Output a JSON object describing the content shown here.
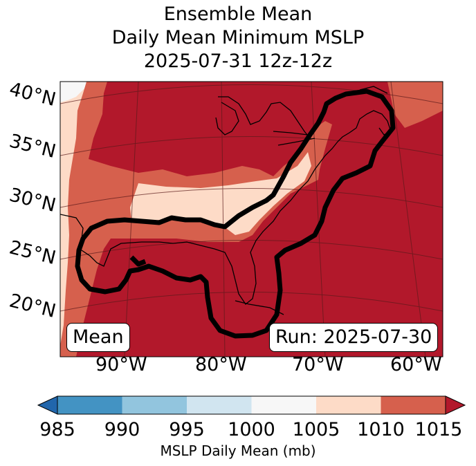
{
  "title": {
    "line1": "Ensemble Mean",
    "line2": "Daily Mean Minimum MSLP",
    "line3": "2025-07-31 12z-12z"
  },
  "map": {
    "lat_labels": [
      "40°N",
      "35°N",
      "30°N",
      "25°N",
      "20°N"
    ],
    "lon_labels": [
      "90°W",
      "80°W",
      "70°W",
      "60°W"
    ],
    "left_box": "Mean",
    "right_box": "Run: 2025-07-30",
    "fill_colors": {
      "white": "#f7f7f7",
      "light": "#fddbc7",
      "mid": "#d6604d",
      "dark": "#b2182b"
    },
    "contour_color": "#000000",
    "coast_color": "#000000"
  },
  "colorbar": {
    "ticks": [
      "985",
      "990",
      "995",
      "1000",
      "1005",
      "1010",
      "1015"
    ],
    "colors": [
      "#2166ac",
      "#4393c3",
      "#92c5de",
      "#d1e5f0",
      "#f7f7f7",
      "#fddbc7",
      "#d6604d",
      "#b2182b"
    ],
    "label": "MSLP Daily Mean (mb)"
  }
}
